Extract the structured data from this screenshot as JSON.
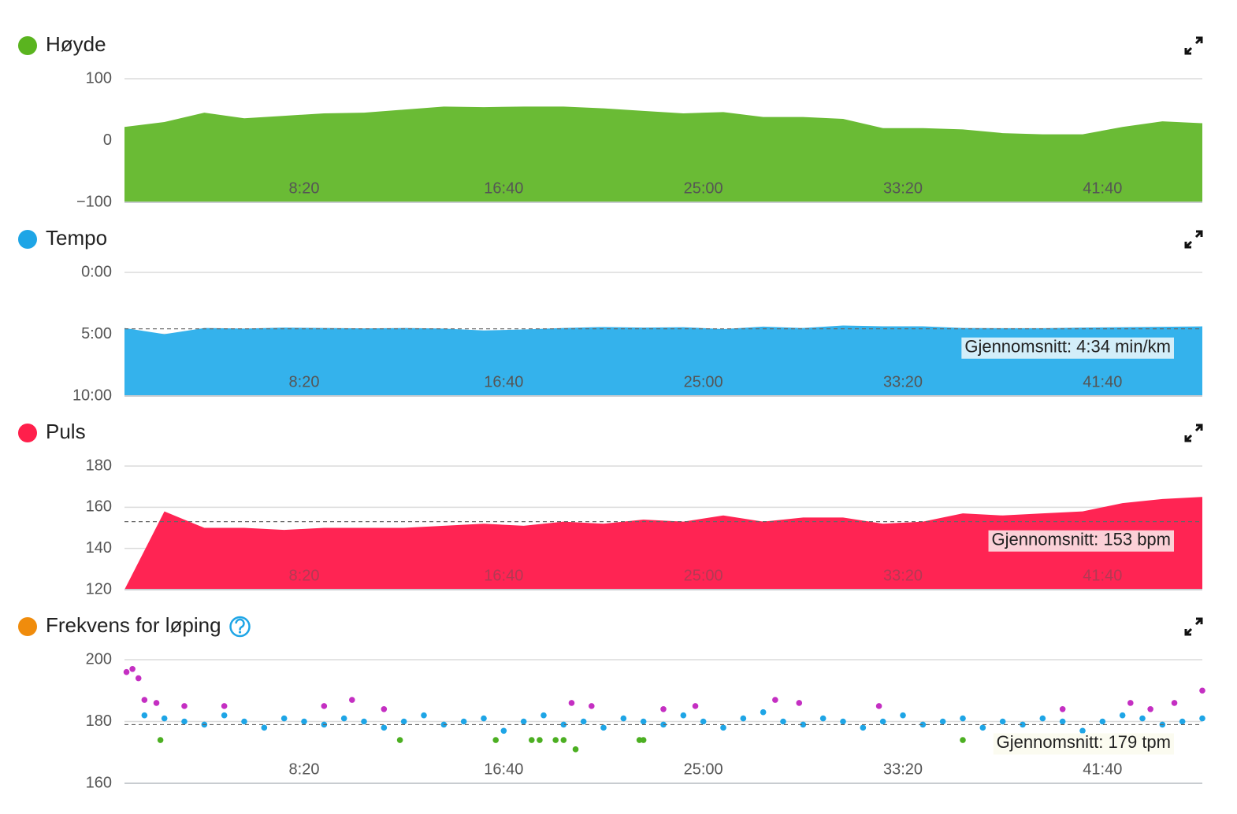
{
  "chart_data": [
    {
      "type": "area",
      "title": "Høyde",
      "color": "#6abb35",
      "dot_color": "#5ab41f",
      "x": [
        50,
        150,
        250,
        350,
        450,
        550,
        650,
        750,
        850,
        950,
        1050,
        1150,
        1250,
        1350,
        1450,
        1550,
        1650,
        1750,
        1850,
        1950,
        2050,
        2150,
        2250,
        2350,
        2450,
        2550,
        2650,
        2750
      ],
      "values": [
        22,
        30,
        45,
        36,
        40,
        44,
        45,
        50,
        55,
        54,
        55,
        55,
        52,
        48,
        44,
        46,
        38,
        38,
        35,
        20,
        20,
        18,
        12,
        10,
        10,
        22,
        31,
        28
      ],
      "xlim": [
        50,
        2750
      ],
      "xticks": [
        {
          "value": 500,
          "label": "8:20"
        },
        {
          "value": 1000,
          "label": "16:40"
        },
        {
          "value": 1500,
          "label": "25:00"
        },
        {
          "value": 2000,
          "label": "33:20"
        },
        {
          "value": 2500,
          "label": "41:40"
        }
      ],
      "ylim": [
        -100,
        100
      ],
      "yticks": [
        {
          "value": -100,
          "label": "−100"
        },
        0,
        100
      ],
      "grid": true
    },
    {
      "type": "area",
      "title": "Tempo",
      "color": "#34b2ec",
      "dot_color": "#1ea5e6",
      "x": [
        50,
        150,
        250,
        350,
        450,
        550,
        650,
        750,
        850,
        950,
        1050,
        1150,
        1250,
        1350,
        1450,
        1550,
        1650,
        1750,
        1850,
        1950,
        2050,
        2150,
        2250,
        2350,
        2450,
        2550,
        2650,
        2750
      ],
      "values": [
        270,
        300,
        270,
        273,
        268,
        270,
        272,
        270,
        273,
        282,
        277,
        270,
        265,
        268,
        266,
        275,
        263,
        270,
        258,
        262,
        262,
        270,
        271,
        271,
        268,
        266,
        264,
        262
      ],
      "xlim": [
        50,
        2750
      ],
      "xticks": [
        {
          "value": 500,
          "label": "8:20"
        },
        {
          "value": 1000,
          "label": "16:40"
        },
        {
          "value": 1500,
          "label": "25:00"
        },
        {
          "value": 2000,
          "label": "33:20"
        },
        {
          "value": 2500,
          "label": "41:40"
        }
      ],
      "ylim": [
        600,
        0
      ],
      "yticks": [
        {
          "value": 0,
          "label": "0:00"
        },
        {
          "value": 300,
          "label": "5:00"
        },
        {
          "value": 600,
          "label": "10:00"
        }
      ],
      "grid": true,
      "average": {
        "value": 274,
        "label": "Gjennomsnitt: 4:34 min/km"
      },
      "average_bg": "#d3eef9"
    },
    {
      "type": "area",
      "title": "Puls",
      "color": "#ff2453",
      "dot_color": "#ff1f4b",
      "x": [
        50,
        150,
        250,
        350,
        450,
        550,
        650,
        750,
        850,
        950,
        1050,
        1150,
        1250,
        1350,
        1450,
        1550,
        1650,
        1750,
        1850,
        1950,
        2050,
        2150,
        2250,
        2350,
        2450,
        2550,
        2650,
        2750
      ],
      "values": [
        120,
        158,
        150,
        150,
        149,
        150,
        150,
        150,
        151,
        152,
        151,
        153,
        152,
        154,
        153,
        156,
        153,
        155,
        155,
        152,
        153,
        157,
        156,
        157,
        158,
        162,
        164,
        165
      ],
      "xlim": [
        50,
        2750
      ],
      "xticks": [
        {
          "value": 500,
          "label": "8:20"
        },
        {
          "value": 1000,
          "label": "16:40"
        },
        {
          "value": 1500,
          "label": "25:00"
        },
        {
          "value": 2000,
          "label": "33:20"
        },
        {
          "value": 2500,
          "label": "41:40"
        }
      ],
      "ylim": [
        120,
        180
      ],
      "yticks": [
        120,
        140,
        160,
        180
      ],
      "grid": true,
      "average": {
        "value": 153,
        "label": "Gjennomsnitt: 153 bpm"
      },
      "average_bg": "#fbd0d7"
    },
    {
      "type": "scatter",
      "title": "Frekvens for løping",
      "color": "#f08c0c",
      "dot_color": "#f08c0c",
      "help": true,
      "series": [
        {
          "color": "#1ea5e6",
          "x": [
            100,
            150,
            200,
            250,
            300,
            350,
            400,
            450,
            500,
            550,
            600,
            650,
            700,
            750,
            800,
            850,
            900,
            950,
            1000,
            1050,
            1100,
            1150,
            1200,
            1250,
            1300,
            1350,
            1400,
            1450,
            1500,
            1550,
            1600,
            1650,
            1700,
            1750,
            1800,
            1850,
            1900,
            1950,
            2000,
            2050,
            2100,
            2150,
            2200,
            2250,
            2300,
            2350,
            2400,
            2450,
            2500,
            2550,
            2600,
            2650,
            2700,
            2750
          ],
          "values": [
            182,
            181,
            180,
            179,
            182,
            180,
            178,
            181,
            180,
            179,
            181,
            180,
            178,
            180,
            182,
            179,
            180,
            181,
            177,
            180,
            182,
            179,
            180,
            178,
            181,
            180,
            179,
            182,
            180,
            178,
            181,
            183,
            180,
            179,
            181,
            180,
            178,
            180,
            182,
            179,
            180,
            181,
            178,
            180,
            179,
            181,
            180,
            177,
            180,
            182,
            181,
            179,
            180,
            181
          ]
        },
        {
          "color": "#c42fc2",
          "x": [
            55,
            70,
            85,
            100,
            130,
            200,
            300,
            550,
            620,
            700,
            1170,
            1220,
            1400,
            1480,
            1680,
            1740,
            1940,
            2400,
            2570,
            2620,
            2680,
            2750
          ],
          "values": [
            196,
            197,
            194,
            187,
            186,
            185,
            185,
            185,
            187,
            184,
            186,
            185,
            184,
            185,
            187,
            186,
            185,
            184,
            186,
            184,
            186,
            190
          ]
        },
        {
          "color": "#4caf22",
          "x": [
            140,
            740,
            980,
            1070,
            1090,
            1130,
            1150,
            1180,
            1340,
            1350,
            2150
          ],
          "values": [
            174,
            174,
            174,
            174,
            174,
            174,
            174,
            171,
            174,
            174,
            174
          ]
        }
      ],
      "xlim": [
        50,
        2750
      ],
      "xticks": [
        {
          "value": 500,
          "label": "8:20"
        },
        {
          "value": 1000,
          "label": "16:40"
        },
        {
          "value": 1500,
          "label": "25:00"
        },
        {
          "value": 2000,
          "label": "33:20"
        },
        {
          "value": 2500,
          "label": "41:40"
        }
      ],
      "ylim": [
        160,
        200
      ],
      "yticks": [
        160,
        180,
        200
      ],
      "grid": true,
      "average": {
        "value": 179,
        "label": "Gjennomsnitt: 179 tpm"
      },
      "average_bg": "#fbfbf0"
    }
  ]
}
